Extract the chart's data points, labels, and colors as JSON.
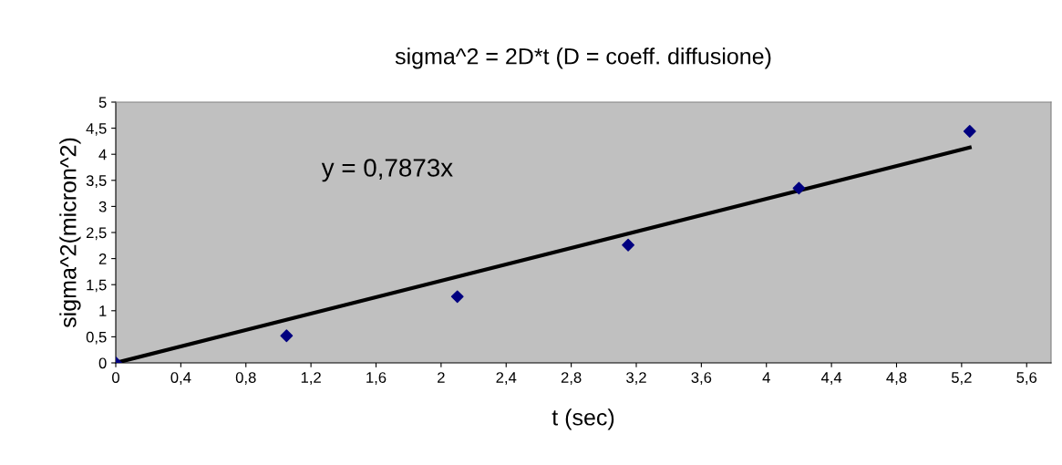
{
  "chart_data": {
    "type": "scatter",
    "title": "sigma^2 = 2D*t (D = coeff. diffusione)",
    "xlabel": "t (sec)",
    "ylabel": "sigma^2(micron^2)",
    "annotations": [
      "y = 0,7873x"
    ],
    "series": [
      {
        "type": "scatter",
        "color": "#000080",
        "marker": "diamond",
        "x": [
          0,
          1.05,
          2.1,
          3.15,
          4.2,
          5.25
        ],
        "values": [
          0,
          0.52,
          1.27,
          2.26,
          3.35,
          4.44
        ]
      },
      {
        "type": "line",
        "color": "#000000",
        "marker": "none",
        "line_style": "solid",
        "x": [
          0,
          5.25
        ],
        "values": [
          0,
          4.13
        ]
      }
    ],
    "xlim": [
      0,
      5.75
    ],
    "ylim": [
      0,
      5
    ],
    "xticks": [
      {
        "value": 0,
        "label": "0"
      },
      {
        "value": 0.4,
        "label": "0,4"
      },
      {
        "value": 0.8,
        "label": "0,8"
      },
      {
        "value": 1.2,
        "label": "1,2"
      },
      {
        "value": 1.6,
        "label": "1,6"
      },
      {
        "value": 2,
        "label": "2"
      },
      {
        "value": 2.4,
        "label": "2,4"
      },
      {
        "value": 2.8,
        "label": "2,8"
      },
      {
        "value": 3.2,
        "label": "3,2"
      },
      {
        "value": 3.6,
        "label": "3,6"
      },
      {
        "value": 4,
        "label": "4"
      },
      {
        "value": 4.4,
        "label": "4,4"
      },
      {
        "value": 4.8,
        "label": "4,8"
      },
      {
        "value": 5.2,
        "label": "5,2"
      },
      {
        "value": 5.6,
        "label": "5,6"
      }
    ],
    "yticks": [
      0,
      {
        "value": 0.5,
        "label": "0,5"
      },
      1,
      {
        "value": 1.5,
        "label": "1,5"
      },
      2,
      {
        "value": 2.5,
        "label": "2,5"
      },
      3,
      {
        "value": 3.5,
        "label": "3,5"
      },
      4,
      {
        "value": 4.5,
        "label": "4,5"
      },
      5
    ],
    "grid": false,
    "legend": false
  }
}
